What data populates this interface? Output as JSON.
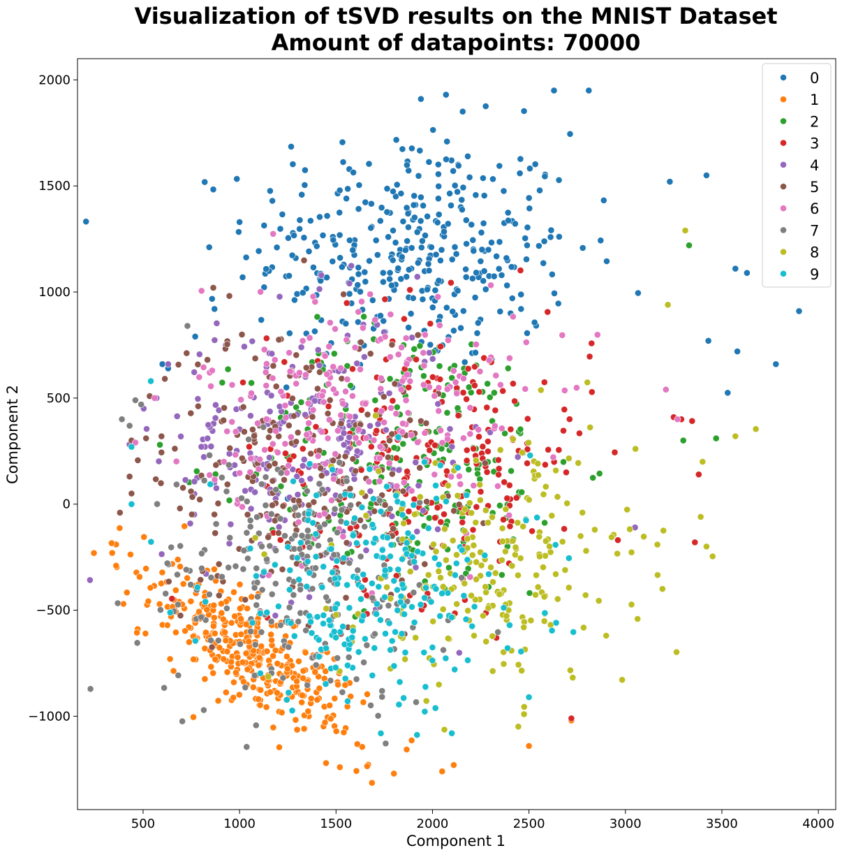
{
  "chart_data": {
    "type": "scatter",
    "title": [
      "Visualization of tSVD results on the MNIST Dataset",
      "Amount of datapoints: 70000"
    ],
    "xlabel": "Component 1",
    "ylabel": "Component 2",
    "xlim": [
      160,
      4090
    ],
    "ylim": [
      -1440,
      2100
    ],
    "xticks": [
      500,
      1000,
      1500,
      2000,
      2500,
      3000,
      3500,
      4000
    ],
    "xtick_labels": [
      "500",
      "1000",
      "1500",
      "2000",
      "2500",
      "3000",
      "3500",
      "4000"
    ],
    "yticks": [
      -1000,
      -500,
      0,
      500,
      1000,
      1500,
      2000
    ],
    "ytick_labels": [
      "−1000",
      "−500",
      "0",
      "500",
      "1000",
      "1500",
      "2000"
    ],
    "grid": false,
    "legend_position": "top-right",
    "series": [
      {
        "name": "0",
        "color": "#1f77b4",
        "center": [
          1900,
          1200
        ],
        "spread": [
          420,
          280
        ],
        "points": [
          [
            1940,
            1910
          ],
          [
            2070,
            1930
          ],
          [
            2630,
            1950
          ],
          [
            2810,
            1950
          ],
          [
            3420,
            1550
          ],
          [
            3230,
            1520
          ],
          [
            3570,
            1110
          ],
          [
            3630,
            1090
          ],
          [
            3900,
            910
          ],
          [
            3780,
            660
          ],
          [
            3580,
            720
          ],
          [
            3530,
            525
          ],
          [
            3430,
            770
          ],
          [
            1170,
            1430
          ],
          [
            870,
            920
          ],
          [
            600,
            660
          ],
          [
            630,
            640
          ],
          [
            770,
            790
          ]
        ]
      },
      {
        "name": "1",
        "color": "#ff7f0e",
        "center": [
          1050,
          -700
        ],
        "spread": [
          280,
          220
        ],
        "points": [
          [
            340,
            -230
          ],
          [
            360,
            -290
          ],
          [
            1800,
            -1270
          ],
          [
            2050,
            -1260
          ],
          [
            2110,
            -1230
          ],
          [
            1520,
            -1240
          ],
          [
            2720,
            -1020
          ],
          [
            2500,
            -1140
          ],
          [
            640,
            -730
          ]
        ]
      },
      {
        "name": "2",
        "color": "#2ca02c",
        "center": [
          1900,
          200
        ],
        "spread": [
          420,
          330
        ],
        "points": [
          [
            3330,
            1220
          ],
          [
            3470,
            310
          ],
          [
            3300,
            300
          ]
        ]
      },
      {
        "name": "3",
        "color": "#d62728",
        "center": [
          2000,
          250
        ],
        "spread": [
          420,
          330
        ],
        "points": [
          [
            3250,
            410
          ],
          [
            3290,
            400
          ],
          [
            2720,
            -1010
          ],
          [
            3380,
            140
          ],
          [
            3360,
            -180
          ]
        ]
      },
      {
        "name": "4",
        "color": "#9467bd",
        "center": [
          1350,
          250
        ],
        "spread": [
          380,
          330
        ],
        "points": [
          [
            630,
            660
          ],
          [
            570,
            500
          ],
          [
            3050,
            -110
          ]
        ]
      },
      {
        "name": "5",
        "color": "#8c564b",
        "center": [
          1300,
          200
        ],
        "spread": [
          380,
          330
        ],
        "points": [
          [
            430,
            130
          ],
          [
            440,
            50
          ],
          [
            380,
            -40
          ],
          [
            440,
            300
          ]
        ]
      },
      {
        "name": "6",
        "color": "#e377c2",
        "center": [
          1650,
          450
        ],
        "spread": [
          420,
          300
        ],
        "points": [
          [
            3270,
            400
          ],
          [
            3210,
            540
          ],
          [
            460,
            290
          ],
          [
            560,
            500
          ]
        ]
      },
      {
        "name": "7",
        "color": "#7f7f7f",
        "center": [
          1300,
          -350
        ],
        "spread": [
          400,
          300
        ],
        "points": [
          [
            390,
            400
          ],
          [
            430,
            370
          ],
          [
            460,
            490
          ],
          [
            490,
            470
          ],
          [
            730,
            840
          ]
        ]
      },
      {
        "name": "8",
        "color": "#bcbd22",
        "center": [
          2300,
          -300
        ],
        "spread": [
          380,
          300
        ],
        "points": [
          [
            3310,
            1290
          ],
          [
            3570,
            320
          ],
          [
            3400,
            200
          ],
          [
            3420,
            -200
          ],
          [
            3390,
            -60
          ],
          [
            3220,
            940
          ],
          [
            2900,
            -620
          ]
        ]
      },
      {
        "name": "9",
        "color": "#17becf",
        "center": [
          1700,
          -400
        ],
        "spread": [
          420,
          280
        ],
        "points": [
          [
            440,
            270
          ],
          [
            440,
            0
          ],
          [
            540,
            580
          ],
          [
            2100,
            -1080
          ],
          [
            2500,
            -910
          ]
        ]
      }
    ]
  }
}
